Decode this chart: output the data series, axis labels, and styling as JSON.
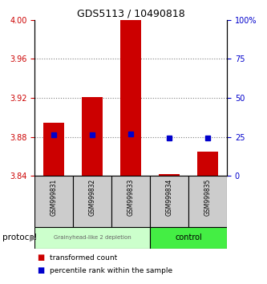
{
  "title": "GDS5113 / 10490818",
  "samples": [
    "GSM999831",
    "GSM999832",
    "GSM999833",
    "GSM999834",
    "GSM999835"
  ],
  "bar_tops": [
    3.895,
    3.921,
    4.002,
    3.842,
    3.865
  ],
  "bar_base": 3.84,
  "blue_dots": [
    3.882,
    3.882,
    3.883,
    3.879,
    3.879
  ],
  "ylim_left": [
    3.84,
    4.0
  ],
  "yticks_left": [
    3.84,
    3.88,
    3.92,
    3.96,
    4.0
  ],
  "yticks_right": [
    0,
    25,
    50,
    75,
    100
  ],
  "ytick_right_labels": [
    "0",
    "25",
    "50",
    "75",
    "100%"
  ],
  "bar_color": "#cc0000",
  "dot_color": "#0000cc",
  "left_tick_color": "#cc0000",
  "right_tick_color": "#0000cc",
  "group1_indices": [
    0,
    1,
    2
  ],
  "group2_indices": [
    3,
    4
  ],
  "group1_label": "Grainyhead-like 2 depletion",
  "group2_label": "control",
  "group1_bg": "#ccffcc",
  "group2_bg": "#44ee44",
  "protocol_label": "protocol",
  "legend_items": [
    {
      "color": "#cc0000",
      "label": "transformed count"
    },
    {
      "color": "#0000cc",
      "label": "percentile rank within the sample"
    }
  ],
  "bar_width": 0.55,
  "grid_color": "#000000",
  "grid_alpha": 0.5,
  "sample_bg_color": "#cccccc",
  "title_fontsize": 9
}
